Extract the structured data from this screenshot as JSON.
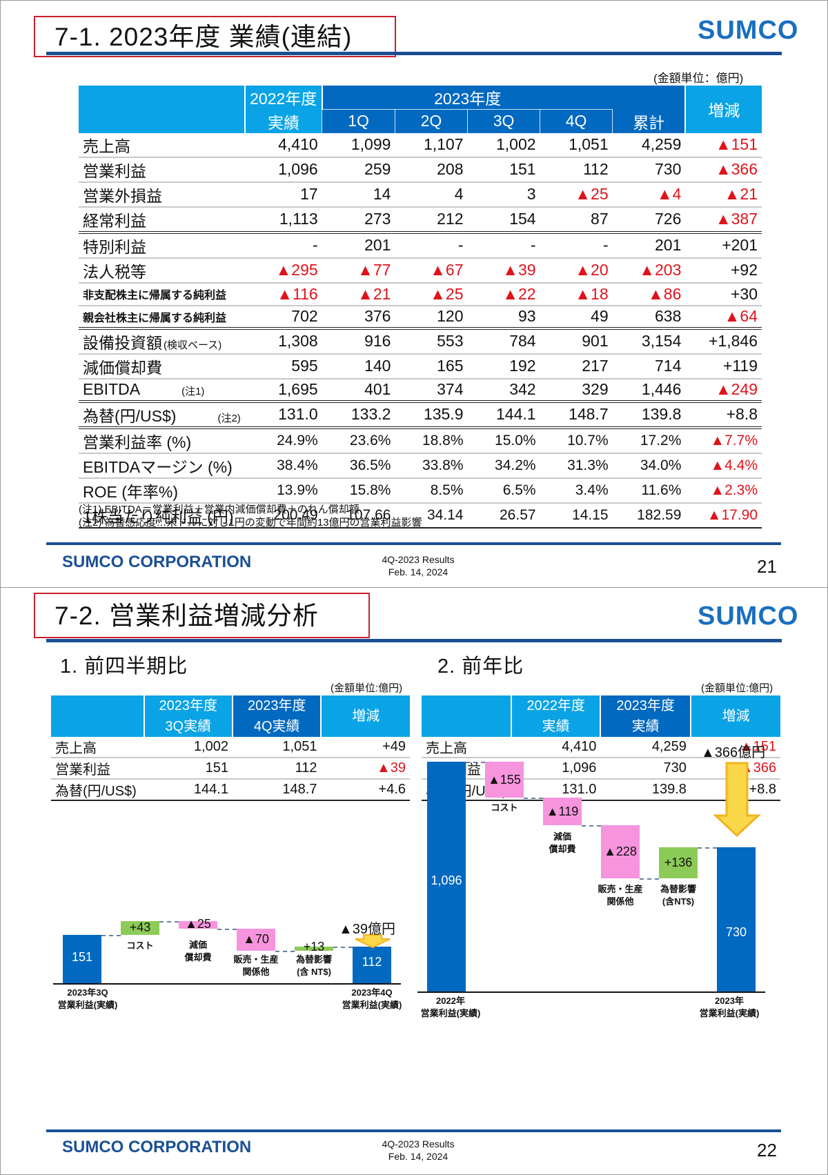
{
  "slide1": {
    "title": "7-1. 2023年度 業績(連結)",
    "logo": "SUMCO",
    "unit": "(金額単位：億円)",
    "header": {
      "fy2022": "2022年度",
      "fy2022_sub": "実績",
      "fy2023": "2023年度",
      "q1": "1Q",
      "q2": "2Q",
      "q3": "3Q",
      "q4": "4Q",
      "total": "累計",
      "change": "増減"
    },
    "rows": [
      {
        "label": "売上高",
        "v": [
          "4,410",
          "1,099",
          "1,107",
          "1,002",
          "1,051",
          "4,259",
          "▲151"
        ],
        "neg": [
          0,
          0,
          0,
          0,
          0,
          0,
          1
        ]
      },
      {
        "label": "営業利益",
        "v": [
          "1,096",
          "259",
          "208",
          "151",
          "112",
          "730",
          "▲366"
        ],
        "neg": [
          0,
          0,
          0,
          0,
          0,
          0,
          1
        ]
      },
      {
        "label": "営業外損益",
        "v": [
          "17",
          "14",
          "4",
          "3",
          "▲25",
          "▲4",
          "▲21"
        ],
        "neg": [
          0,
          0,
          0,
          0,
          1,
          1,
          1
        ]
      },
      {
        "label": "経常利益",
        "v": [
          "1,113",
          "273",
          "212",
          "154",
          "87",
          "726",
          "▲387"
        ],
        "neg": [
          0,
          0,
          0,
          0,
          0,
          0,
          1
        ]
      },
      {
        "label": "特別利益",
        "v": [
          "-",
          "201",
          "-",
          "-",
          "-",
          "201",
          "+201"
        ],
        "neg": [
          0,
          0,
          0,
          0,
          0,
          0,
          0
        ]
      },
      {
        "label": "法人税等",
        "v": [
          "▲295",
          "▲77",
          "▲67",
          "▲39",
          "▲20",
          "▲203",
          "+92"
        ],
        "neg": [
          1,
          1,
          1,
          1,
          1,
          1,
          0
        ]
      },
      {
        "label": "非支配株主に帰属する純利益",
        "v": [
          "▲116",
          "▲21",
          "▲25",
          "▲22",
          "▲18",
          "▲86",
          "+30"
        ],
        "neg": [
          1,
          1,
          1,
          1,
          1,
          1,
          0
        ]
      },
      {
        "label": "親会社株主に帰属する純利益",
        "v": [
          "702",
          "376",
          "120",
          "93",
          "49",
          "638",
          "▲64"
        ],
        "neg": [
          0,
          0,
          0,
          0,
          0,
          0,
          1
        ]
      },
      {
        "label": "設備投資額",
        "label_note": "(検収ベース)",
        "v": [
          "1,308",
          "916",
          "553",
          "784",
          "901",
          "3,154",
          "+1,846"
        ],
        "neg": [
          0,
          0,
          0,
          0,
          0,
          0,
          0
        ]
      },
      {
        "label": "減価償却費",
        "v": [
          "595",
          "140",
          "165",
          "192",
          "217",
          "714",
          "+119"
        ],
        "neg": [
          0,
          0,
          0,
          0,
          0,
          0,
          0
        ]
      },
      {
        "label": "EBITDA",
        "label_note": "(注1)",
        "v": [
          "1,695",
          "401",
          "374",
          "342",
          "329",
          "1,446",
          "▲249"
        ],
        "neg": [
          0,
          0,
          0,
          0,
          0,
          0,
          1
        ]
      },
      {
        "label": "為替(円/US$)",
        "label_note": "(注2)",
        "v": [
          "131.0",
          "133.2",
          "135.9",
          "144.1",
          "148.7",
          "139.8",
          "+8.8"
        ],
        "neg": [
          0,
          0,
          0,
          0,
          0,
          0,
          0
        ]
      },
      {
        "label": "営業利益率 (%)",
        "v": [
          "24.9%",
          "23.6%",
          "18.8%",
          "15.0%",
          "10.7%",
          "17.2%",
          "▲7.7%"
        ],
        "neg": [
          0,
          0,
          0,
          0,
          0,
          0,
          1
        ]
      },
      {
        "label": "EBITDAマージン (%)",
        "v": [
          "38.4%",
          "36.5%",
          "33.8%",
          "34.2%",
          "31.3%",
          "34.0%",
          "▲4.4%"
        ],
        "neg": [
          0,
          0,
          0,
          0,
          0,
          0,
          1
        ]
      },
      {
        "label": "ROE (年率%)",
        "v": [
          "13.9%",
          "15.8%",
          "8.5%",
          "6.5%",
          "3.4%",
          "11.6%",
          "▲2.3%"
        ],
        "neg": [
          0,
          0,
          0,
          0,
          0,
          0,
          1
        ]
      },
      {
        "label": "1株当たり純利益 (円)",
        "v": [
          "200.49",
          "107.66",
          "34.14",
          "26.57",
          "14.15",
          "182.59",
          "▲17.90"
        ],
        "neg": [
          0,
          0,
          0,
          0,
          0,
          0,
          1
        ]
      }
    ],
    "notes": [
      "(注1) EBITDA＝営業利益＋営業内減価償却費＋のれん償却額",
      "(注2) 為替感応度…米ドルに対し1円の変動で年間約13億円の営業利益影響"
    ],
    "footer": {
      "corp": "SUMCO CORPORATION",
      "line1": "4Q-2023 Results",
      "line2": "Feb. 14, 2024",
      "page": "21"
    }
  },
  "slide2": {
    "title": "7-2. 営業利益増減分析",
    "logo": "SUMCO",
    "left": {
      "heading": "1. 前四半期比",
      "unit": "(金額単位:億円)",
      "header": {
        "c1a": "2023年度",
        "c1b": "3Q実績",
        "c2a": "2023年度",
        "c2b": "4Q実績",
        "c3": "増減"
      },
      "rows": [
        {
          "label": "売上高",
          "v": [
            "1,002",
            "1,051",
            "+49"
          ],
          "neg": [
            0,
            0,
            0
          ]
        },
        {
          "label": "営業利益",
          "v": [
            "151",
            "112",
            "▲39"
          ],
          "neg": [
            0,
            0,
            1
          ]
        },
        {
          "label": "為替(円/US$)",
          "v": [
            "144.1",
            "148.7",
            "+4.6"
          ],
          "neg": [
            0,
            0,
            0
          ]
        }
      ],
      "callout": "▲39億円"
    },
    "right": {
      "heading": "2. 前年比",
      "unit": "(金額単位:億円)",
      "header": {
        "c1a": "2022年度",
        "c1b": "実績",
        "c2a": "2023年度",
        "c2b": "実績",
        "c3": "増減"
      },
      "rows": [
        {
          "label": "売上高",
          "v": [
            "4,410",
            "4,259",
            "▲151"
          ],
          "neg": [
            0,
            0,
            1
          ]
        },
        {
          "label": "営業利益",
          "v": [
            "1,096",
            "730",
            "▲366"
          ],
          "neg": [
            0,
            0,
            1
          ]
        },
        {
          "label": "為替(円/US$)",
          "v": [
            "131.0",
            "139.8",
            "+8.8"
          ],
          "neg": [
            0,
            0,
            0
          ]
        }
      ],
      "callout": "▲366億円"
    },
    "footer": {
      "corp": "SUMCO CORPORATION",
      "line1": "4Q-2023 Results",
      "line2": "Feb. 14, 2024",
      "page": "22"
    }
  },
  "chart_data": [
    {
      "type": "waterfall",
      "title": "1. 前四半期比",
      "categories": [
        "2023年3Q 営業利益(実績)",
        "コスト",
        "減価償却費",
        "販売・生産関係他",
        "為替影響(含 NT$)",
        "2023年4Q 営業利益(実績)"
      ],
      "values": [
        151,
        43,
        -25,
        -70,
        13,
        112
      ],
      "labels": [
        "151",
        "+43",
        "▲25",
        "▲70",
        "+13",
        "112"
      ],
      "annotation": "▲39億円",
      "unit": "億円"
    },
    {
      "type": "waterfall",
      "title": "2. 前年比",
      "categories": [
        "2022年 営業利益(実績)",
        "コスト",
        "減価償却費",
        "販売・生産関係他",
        "為替影響(含NT$)",
        "2023年 営業利益(実績)"
      ],
      "values": [
        1096,
        -155,
        -119,
        -228,
        136,
        730
      ],
      "labels": [
        "1,096",
        "▲155",
        "▲119",
        "▲228",
        "+136",
        "730"
      ],
      "annotation": "▲366億円",
      "unit": "億円"
    }
  ],
  "charts": {
    "q": {
      "start_l1": "2023年3Q",
      "start_l2": "営業利益(実績)",
      "end_l1": "2023年4Q",
      "end_l2": "営業利益(実績)",
      "b0": "151",
      "b1": "+43",
      "b2": "▲25",
      "b3": "▲70",
      "b4": "+13",
      "b5": "112",
      "c1": "コスト",
      "c2a": "減価",
      "c2b": "償却費",
      "c3a": "販売・生産",
      "c3b": "関係他",
      "c4a": "為替影響",
      "c4b": "(含 NT$)"
    },
    "y": {
      "start_l1": "2022年",
      "start_l2": "営業利益(実績)",
      "end_l1": "2023年",
      "end_l2": "営業利益(実績)",
      "b0": "1,096",
      "b1": "▲155",
      "b2": "▲119",
      "b3": "▲228",
      "b4": "+136",
      "b5": "730",
      "c1": "コスト",
      "c2a": "減価",
      "c2b": "償却費",
      "c3a": "販売・生産",
      "c3b": "関係他",
      "c4a": "為替影響",
      "c4b": "(含NT$)"
    }
  }
}
